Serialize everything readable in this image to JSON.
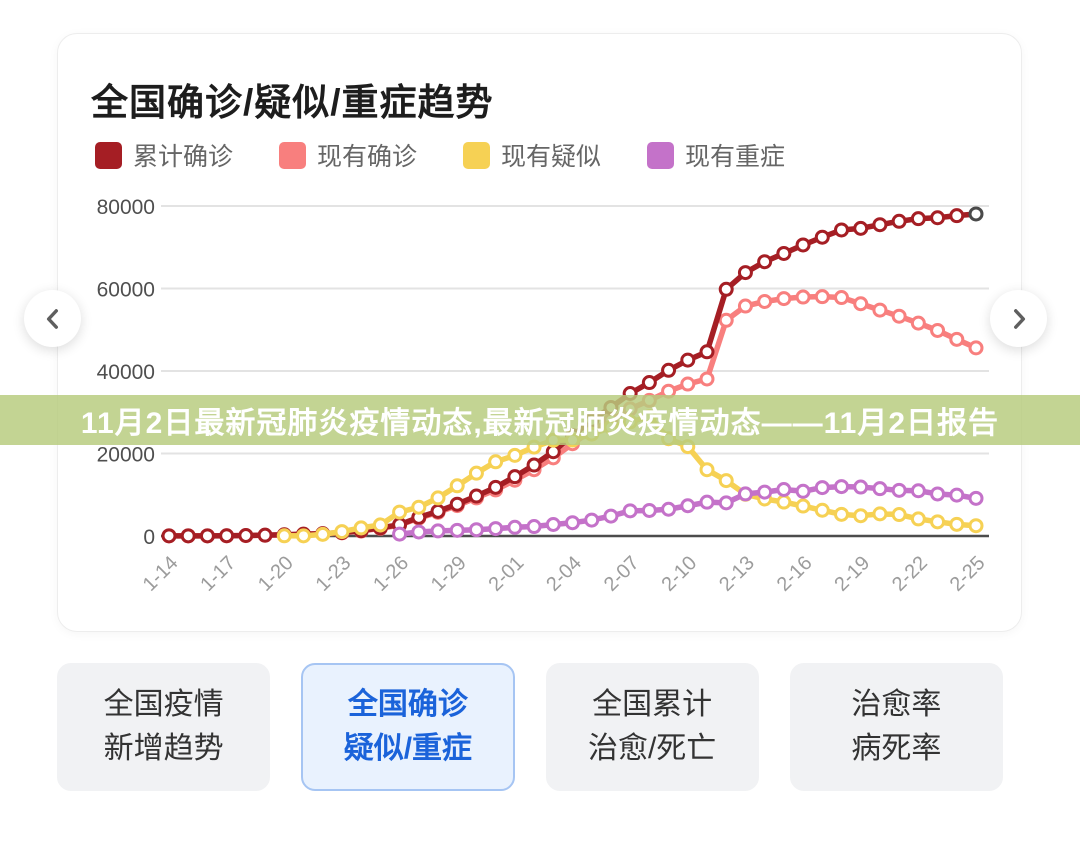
{
  "header": {
    "title": "全国确诊/疑似/重症趋势"
  },
  "overlay_banner": {
    "text": "11月2日最新冠肺炎疫情动态,最新冠肺炎疫情动态——11月2日报告",
    "bg_color": "#b8cc7e",
    "text_color": "#ffffff"
  },
  "nav": {
    "left_icon": "chevron-left",
    "right_icon": "chevron-right"
  },
  "tabs": [
    {
      "line1": "全国疫情",
      "line2": "新增趋势",
      "selected": false
    },
    {
      "line1": "全国确诊",
      "line2": "疑似/重症",
      "selected": true
    },
    {
      "line1": "全国累计",
      "line2": "治愈/死亡",
      "selected": false
    },
    {
      "line1": "治愈率",
      "line2": "病死率",
      "selected": false
    }
  ],
  "colors": {
    "accent_blue": "#1b63da",
    "tab_selected_bg": "#e9f2fe",
    "tab_selected_border": "#a6c5f3",
    "tab_default_bg": "#f1f2f4"
  },
  "chart_data": {
    "type": "line",
    "title": "全国确诊/疑似/重症趋势",
    "x": [
      "1-14",
      "1-15",
      "1-16",
      "1-17",
      "1-18",
      "1-19",
      "1-20",
      "1-21",
      "1-22",
      "1-23",
      "1-24",
      "1-25",
      "1-26",
      "1-27",
      "1-28",
      "1-29",
      "1-30",
      "1-31",
      "2-01",
      "2-02",
      "2-03",
      "2-04",
      "2-05",
      "2-06",
      "2-07",
      "2-08",
      "2-09",
      "2-10",
      "2-11",
      "2-12",
      "2-13",
      "2-14",
      "2-15",
      "2-16",
      "2-17",
      "2-18",
      "2-19",
      "2-20",
      "2-21",
      "2-22",
      "2-23",
      "2-24",
      "2-25"
    ],
    "x_tick_labels": [
      "1-14",
      "1-17",
      "1-20",
      "1-23",
      "1-26",
      "1-29",
      "2-01",
      "2-04",
      "2-07",
      "2-10",
      "2-13",
      "2-16",
      "2-19",
      "2-22",
      "2-25"
    ],
    "x_tick_step": 3,
    "ylim": [
      0,
      80000
    ],
    "yticks": [
      0,
      20000,
      40000,
      60000,
      80000
    ],
    "grid": true,
    "legend_position": "top",
    "marker_style": "white-filled-circle",
    "series": [
      {
        "name": "累计确诊",
        "color": "#a51e24",
        "z": 2,
        "highlight_last": true,
        "values": [
          41,
          41,
          45,
          62,
          121,
          198,
          291,
          440,
          571,
          830,
          1287,
          1975,
          2744,
          4515,
          5974,
          7711,
          9692,
          11791,
          14380,
          17205,
          20438,
          24324,
          28018,
          31161,
          34546,
          37198,
          40171,
          42638,
          44653,
          59804,
          63851,
          66492,
          68500,
          70548,
          72436,
          74185,
          74576,
          75465,
          76288,
          76936,
          77150,
          77658,
          78064
        ]
      },
      {
        "name": "现有确诊",
        "color": "#f87f7e",
        "z": 1,
        "highlight_last": false,
        "values": [
          35,
          34,
          37,
          53,
          105,
          180,
          270,
          406,
          528,
          771,
          1208,
          1870,
          2613,
          4348,
          5739,
          7367,
          9240,
          11177,
          13522,
          16067,
          18951,
          22363,
          25543,
          28093,
          30815,
          32876,
          35097,
          36843,
          38069,
          52297,
          55748,
          56851,
          57548,
          57934,
          58016,
          57805,
          56303,
          54771,
          53284,
          51606,
          49824,
          47672,
          45604
        ]
      },
      {
        "name": "现有疑似",
        "color": "#f6d154",
        "z": 3,
        "highlight_last": false,
        "values": [
          null,
          null,
          null,
          null,
          null,
          null,
          54,
          37,
          393,
          1072,
          1965,
          2684,
          5794,
          6973,
          9239,
          12167,
          15238,
          17988,
          19544,
          21558,
          23214,
          23260,
          24702,
          26359,
          27657,
          28942,
          23589,
          21675,
          16067,
          13435,
          10109,
          8969,
          8228,
          7264,
          6242,
          5248,
          4922,
          5365,
          5207,
          4148,
          3434,
          2824,
          2491
        ]
      },
      {
        "name": "现有重症",
        "color": "#c472c9",
        "z": 4,
        "highlight_last": false,
        "values": [
          null,
          null,
          null,
          null,
          null,
          null,
          null,
          null,
          null,
          null,
          null,
          null,
          461,
          976,
          1239,
          1370,
          1527,
          1795,
          2110,
          2296,
          2788,
          3219,
          3859,
          4821,
          6101,
          6188,
          6484,
          7333,
          8204,
          8030,
          10204,
          10644,
          11272,
          10844,
          11741,
          11977,
          11864,
          11477,
          11069,
          10968,
          10189,
          9915,
          9126
        ]
      }
    ]
  }
}
